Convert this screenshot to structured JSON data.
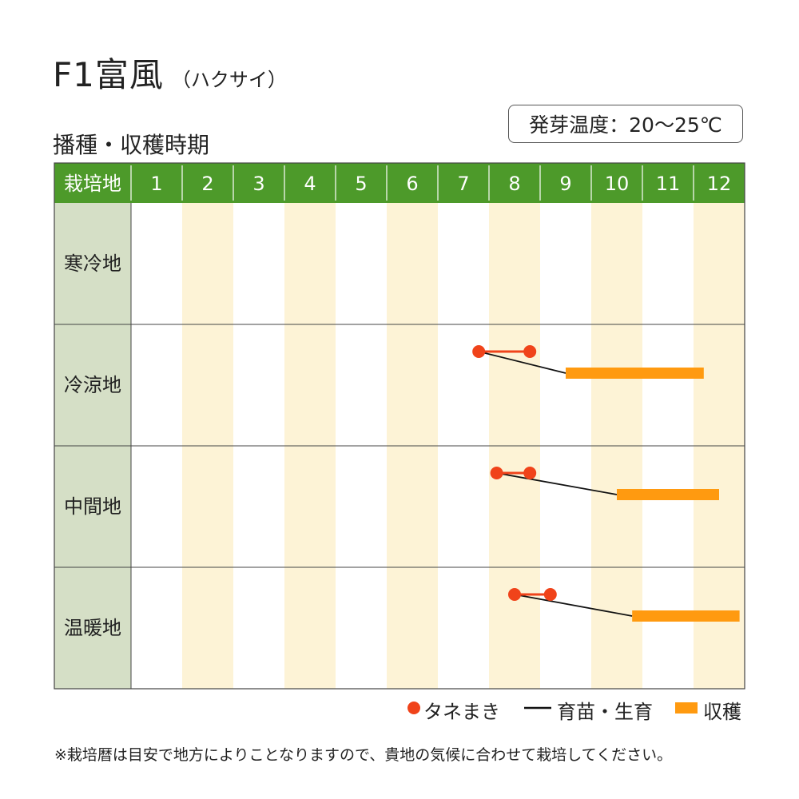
{
  "header": {
    "title": "F1富風",
    "subtitle": "（ハクサイ）",
    "section_title": "播種・収穫時期",
    "temperature": "発芽温度：20～25℃"
  },
  "chart_data": {
    "type": "table",
    "corner_label": "栽培地",
    "months": [
      "1",
      "2",
      "3",
      "4",
      "5",
      "6",
      "7",
      "8",
      "9",
      "10",
      "11",
      "12"
    ],
    "regions": [
      {
        "name": "寒冷地",
        "sowing": null,
        "growing": null,
        "harvest": null
      },
      {
        "name": "冷涼地",
        "sowing": [
          7.8,
          8.8
        ],
        "growing": [
          7.8,
          9.5
        ],
        "harvest": [
          9.5,
          12.2
        ]
      },
      {
        "name": "中間地",
        "sowing": [
          8.15,
          8.8
        ],
        "growing": [
          8.15,
          10.5
        ],
        "harvest": [
          10.5,
          12.5
        ]
      },
      {
        "name": "温暖地",
        "sowing": [
          8.5,
          9.2
        ],
        "growing": [
          8.5,
          10.8
        ],
        "harvest": [
          10.8,
          12.9
        ]
      }
    ],
    "colors": {
      "header_bg": "#4d9a2a",
      "header_text": "#ffffff",
      "label_col_bg": "#d5dfc6",
      "even_month_band": "#fdf3d6",
      "sowing": "#f0431a",
      "growing": "#111111",
      "harvest": "#ff9a10",
      "grid": "#444444"
    },
    "legend": {
      "sowing": "タネまき",
      "growing": "育苗・生育",
      "harvest": "収穫"
    }
  },
  "note": "※栽培暦は目安で地方によりことなりますので、貴地の気候に合わせて栽培してください。"
}
